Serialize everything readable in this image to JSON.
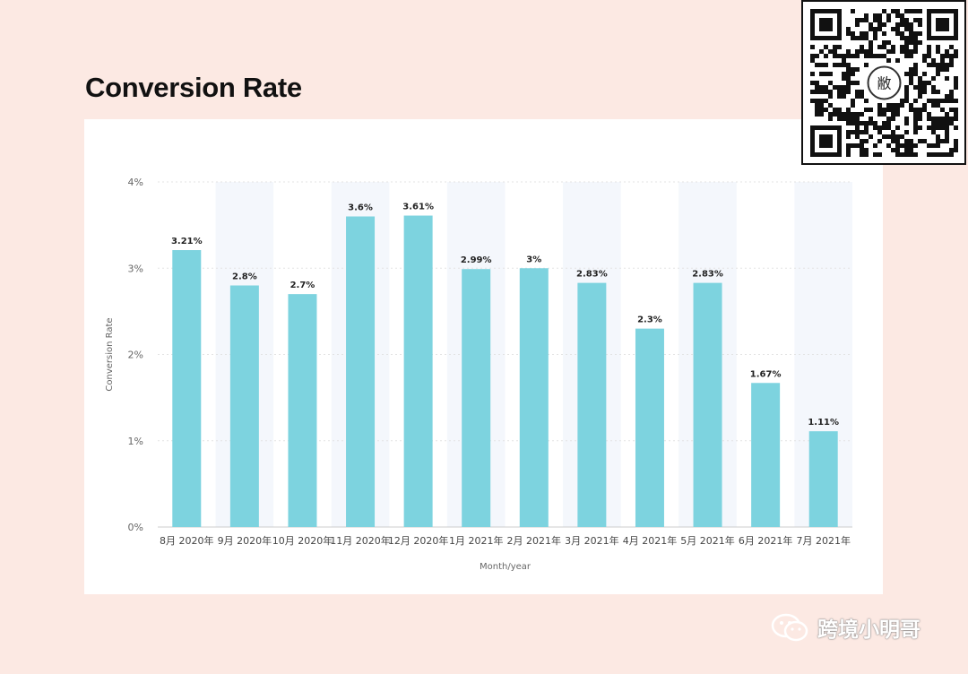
{
  "page": {
    "title": "Conversion Rate"
  },
  "watermark": {
    "text": "跨境小明哥",
    "icon": "wechat-icon"
  },
  "qr_code": {
    "center_char": "敝"
  },
  "colors": {
    "background": "#fce9e3",
    "bar": "#7dd3df",
    "band": "#f4f7fc"
  },
  "chart_data": {
    "type": "bar",
    "categories": [
      "8月 2020年",
      "9月 2020年",
      "10月 2020年",
      "11月 2020年",
      "12月 2020年",
      "1月 2021年",
      "2月 2021年",
      "3月 2021年",
      "4月 2021年",
      "5月 2021年",
      "6月 2021年",
      "7月 2021年"
    ],
    "values": [
      3.21,
      2.8,
      2.7,
      3.6,
      3.61,
      2.99,
      3.0,
      2.83,
      2.3,
      2.83,
      1.67,
      1.11
    ],
    "data_labels": [
      "3.21%",
      "2.8%",
      "2.7%",
      "3.6%",
      "3.61%",
      "2.99%",
      "3%",
      "2.83%",
      "2.3%",
      "2.83%",
      "1.67%",
      "1.11%"
    ],
    "title": "Conversion Rate",
    "xlabel": "Month/year",
    "ylabel": "Conversion Rate",
    "ylim": [
      0,
      4
    ],
    "yticks": [
      0,
      1,
      2,
      3,
      4
    ],
    "ytick_labels": [
      "0%",
      "1%",
      "2%",
      "3%",
      "4%"
    ],
    "grid": true,
    "alternating_bands": true
  }
}
